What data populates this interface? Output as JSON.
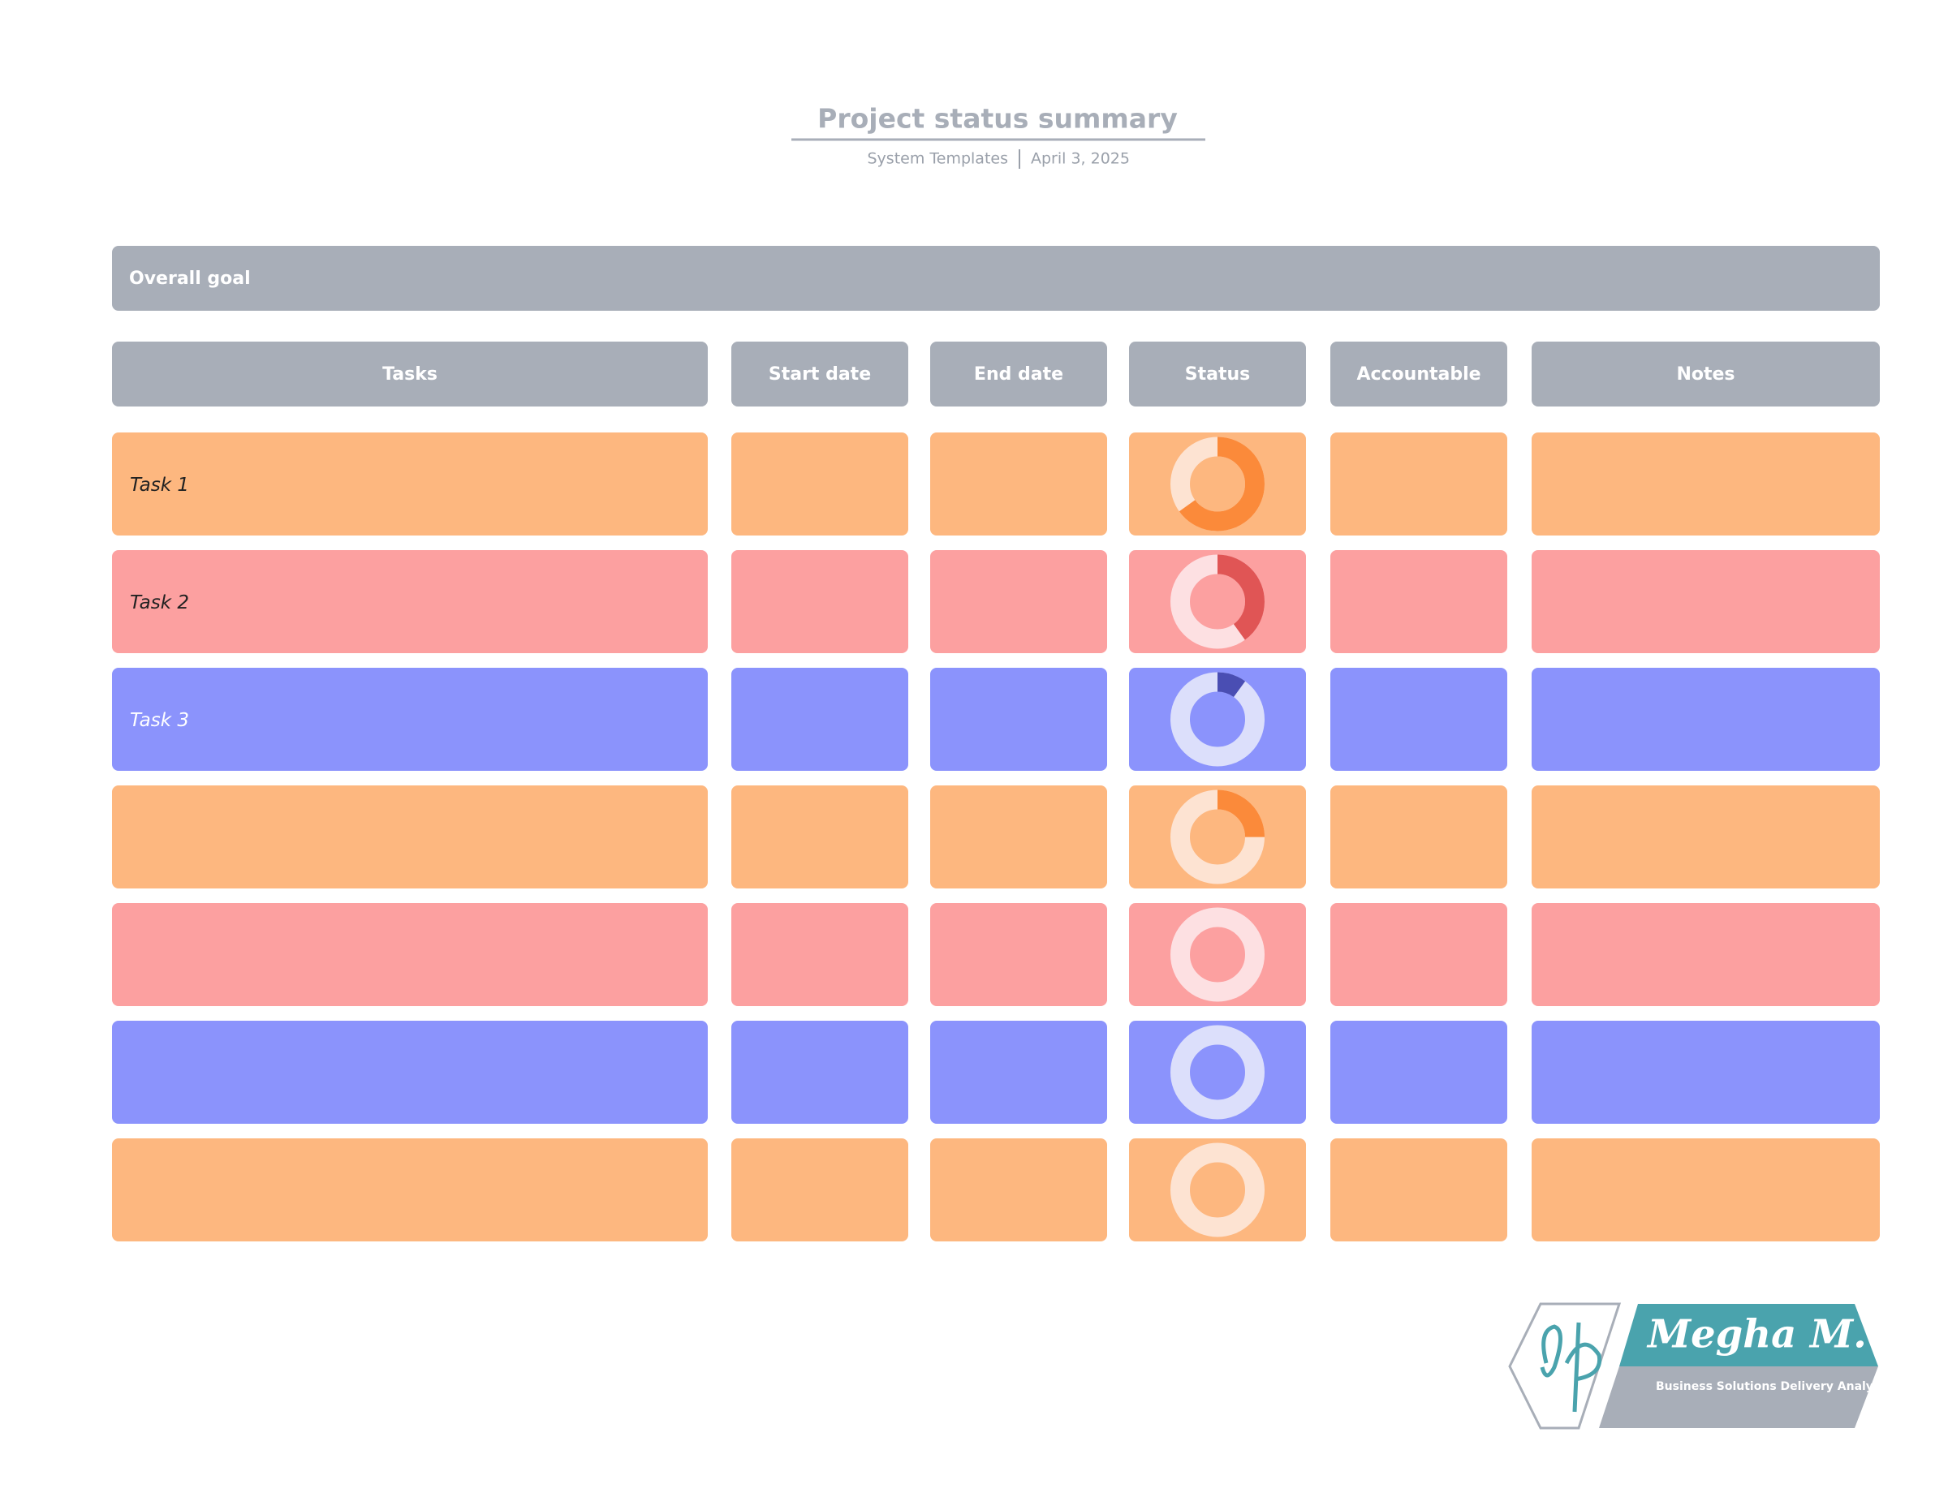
{
  "header": {
    "title": "Project status summary",
    "source": "System Templates",
    "date": "April 3, 2025"
  },
  "goal": {
    "label": "Overall goal"
  },
  "columns": [
    "Tasks",
    "Start date",
    "End date",
    "Status",
    "Accountable",
    "Notes"
  ],
  "rows": [
    {
      "label": "Task 1",
      "color": "#fdb77f",
      "progress": 65
    },
    {
      "label": "Task 2",
      "color": "#fca0a0",
      "progress": 40
    },
    {
      "label": "Task 3",
      "color": "#8b93fc",
      "progress": 10
    },
    {
      "color": "#fdb77f",
      "progress": 25
    },
    {
      "color": "#fca0a0",
      "progress": 0
    },
    {
      "color": "#8b93fc",
      "progress": 0
    },
    {
      "color": "#fdb77f",
      "progress": 0
    }
  ],
  "logo": {
    "name": "Megha M.",
    "role": "Business Solutions Delivery Analyst"
  }
}
